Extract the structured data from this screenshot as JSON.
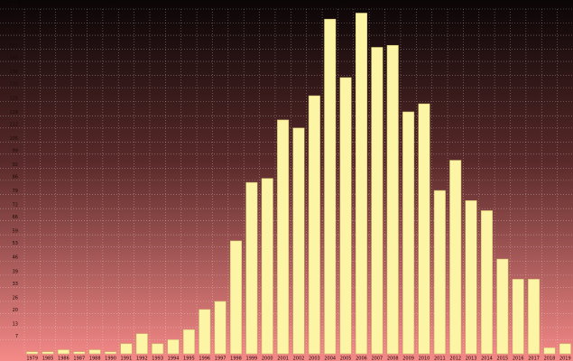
{
  "chart_data": {
    "type": "bar",
    "categories": [
      "1979",
      "1985",
      "1986",
      "1987",
      "1988",
      "1990",
      "1991",
      "1992",
      "1993",
      "1994",
      "1995",
      "1996",
      "1997",
      "1998",
      "1999",
      "2000",
      "2001",
      "2002",
      "2003",
      "2004",
      "2005",
      "2006",
      "2007",
      "2008",
      "2009",
      "2010",
      "2011",
      "2012",
      "2013",
      "2014",
      "2015",
      "2016",
      "2017",
      "2018",
      "2019"
    ],
    "values": [
      1,
      1,
      2,
      1,
      2,
      1,
      5,
      10,
      5,
      7,
      12,
      22,
      26,
      56,
      85,
      87,
      116,
      112,
      128,
      166,
      137,
      169,
      152,
      153,
      120,
      124,
      81,
      96,
      76,
      71,
      47,
      37,
      37,
      3,
      5
    ],
    "color": "#fdf5a6",
    "ylim": [
      0,
      171
    ],
    "yticks": [
      7,
      13,
      20,
      26,
      33,
      39,
      46,
      53,
      59,
      66,
      72,
      79,
      86,
      92,
      99,
      105,
      112,
      118,
      125,
      132,
      138,
      145,
      151,
      158,
      164,
      171
    ],
    "grid": true
  }
}
